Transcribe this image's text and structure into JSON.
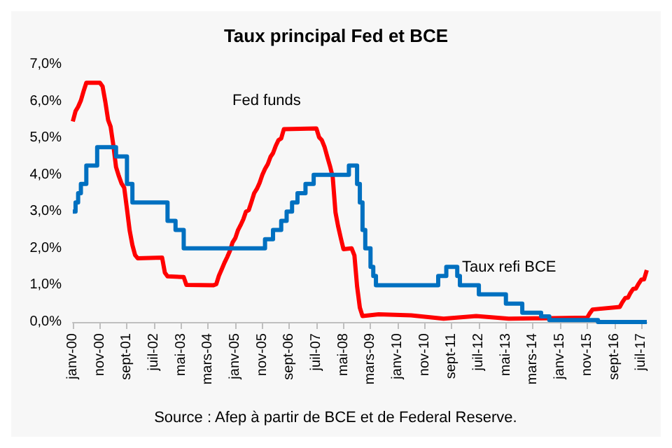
{
  "chart_data": {
    "type": "line",
    "title": "Taux principal Fed et BCE",
    "xlim": [
      "2000-01",
      "2017-09"
    ],
    "xticks": [
      {
        "value": "2000-01",
        "label": "janv-00"
      },
      {
        "value": "2000-11",
        "label": "nov-00"
      },
      {
        "value": "2001-09",
        "label": "sept-01"
      },
      {
        "value": "2002-07",
        "label": "juil-02"
      },
      {
        "value": "2003-05",
        "label": "mai-03"
      },
      {
        "value": "2004-03",
        "label": "mars-04"
      },
      {
        "value": "2005-01",
        "label": "janv-05"
      },
      {
        "value": "2005-11",
        "label": "nov-05"
      },
      {
        "value": "2006-09",
        "label": "sept-06"
      },
      {
        "value": "2007-07",
        "label": "juil-07"
      },
      {
        "value": "2008-05",
        "label": "mai-08"
      },
      {
        "value": "2009-03",
        "label": "mars-09"
      },
      {
        "value": "2010-01",
        "label": "janv-10"
      },
      {
        "value": "2010-11",
        "label": "nov-10"
      },
      {
        "value": "2011-09",
        "label": "sept-11"
      },
      {
        "value": "2012-07",
        "label": "juil-12"
      },
      {
        "value": "2013-05",
        "label": "mai-13"
      },
      {
        "value": "2014-03",
        "label": "mars-14"
      },
      {
        "value": "2015-01",
        "label": "janv-15"
      },
      {
        "value": "2015-11",
        "label": "nov-15"
      },
      {
        "value": "2016-09",
        "label": "sept-16"
      },
      {
        "value": "2017-07",
        "label": "juil-17"
      }
    ],
    "ylim": [
      0,
      7
    ],
    "yticks": [
      {
        "value": 0,
        "label": "0,0%"
      },
      {
        "value": 1,
        "label": "1,0%"
      },
      {
        "value": 2,
        "label": "2,0%"
      },
      {
        "value": 3,
        "label": "3,0%"
      },
      {
        "value": 4,
        "label": "4,0%"
      },
      {
        "value": 5,
        "label": "5,0%"
      },
      {
        "value": 6,
        "label": "6,0%"
      },
      {
        "value": 7,
        "label": "7,0%"
      }
    ],
    "grid": false,
    "marker": "none",
    "series": [
      {
        "name": "Fed funds",
        "color": "#ff0000",
        "x": [
          "2000-01",
          "2000-02",
          "2000-03",
          "2000-04",
          "2000-05",
          "2000-06",
          "2000-11",
          "2000-12",
          "2001-01",
          "2001-02",
          "2001-03",
          "2001-04",
          "2001-05",
          "2001-06",
          "2001-07",
          "2001-08",
          "2001-09",
          "2001-10",
          "2001-11",
          "2001-12",
          "2002-01",
          "2002-10",
          "2002-11",
          "2002-12",
          "2003-06",
          "2003-07",
          "2004-05",
          "2004-06",
          "2004-07",
          "2004-08",
          "2004-09",
          "2004-10",
          "2004-11",
          "2004-12",
          "2005-01",
          "2005-02",
          "2005-03",
          "2005-04",
          "2005-05",
          "2005-06",
          "2005-07",
          "2005-08",
          "2005-09",
          "2005-10",
          "2005-11",
          "2005-12",
          "2006-01",
          "2006-02",
          "2006-03",
          "2006-04",
          "2006-05",
          "2006-06",
          "2006-07",
          "2007-07",
          "2007-08",
          "2007-09",
          "2007-10",
          "2007-11",
          "2007-12",
          "2008-01",
          "2008-02",
          "2008-03",
          "2008-04",
          "2008-05",
          "2008-08",
          "2008-09",
          "2008-10",
          "2008-11",
          "2008-12",
          "2009-06",
          "2010-06",
          "2011-06",
          "2012-06",
          "2013-06",
          "2014-06",
          "2015-11",
          "2015-12",
          "2016-01",
          "2016-11",
          "2016-12",
          "2017-01",
          "2017-02",
          "2017-03",
          "2017-04",
          "2017-05",
          "2017-06",
          "2017-07",
          "2017-08",
          "2017-09"
        ],
        "values": [
          5.45,
          5.73,
          5.85,
          6.02,
          6.27,
          6.5,
          6.5,
          6.4,
          5.98,
          5.49,
          5.31,
          4.8,
          4.21,
          3.97,
          3.77,
          3.65,
          3.07,
          2.49,
          2.09,
          1.82,
          1.73,
          1.75,
          1.34,
          1.24,
          1.22,
          1.01,
          1.0,
          1.03,
          1.26,
          1.43,
          1.61,
          1.76,
          1.93,
          2.16,
          2.28,
          2.5,
          2.63,
          2.79,
          3.0,
          3.04,
          3.26,
          3.5,
          3.62,
          3.78,
          4.0,
          4.16,
          4.29,
          4.49,
          4.59,
          4.79,
          4.94,
          4.99,
          5.24,
          5.26,
          5.02,
          4.94,
          4.76,
          4.49,
          4.24,
          3.94,
          2.98,
          2.61,
          2.28,
          1.98,
          2.0,
          1.81,
          0.97,
          0.39,
          0.16,
          0.21,
          0.18,
          0.09,
          0.16,
          0.09,
          0.1,
          0.12,
          0.24,
          0.34,
          0.41,
          0.54,
          0.65,
          0.66,
          0.79,
          0.9,
          0.91,
          1.04,
          1.15,
          1.16,
          1.41
        ]
      },
      {
        "name": "Taux refi BCE",
        "type": "step",
        "color": "#0070c0",
        "x": [
          "2000-01",
          "2000-02",
          "2000-03",
          "2000-04",
          "2000-06",
          "2000-10",
          "2001-05",
          "2001-09",
          "2001-11",
          "2002-12",
          "2003-03",
          "2003-06",
          "2005-12",
          "2006-03",
          "2006-06",
          "2006-08",
          "2006-10",
          "2006-12",
          "2007-03",
          "2007-06",
          "2008-07",
          "2008-10",
          "2008-11",
          "2008-12",
          "2009-01",
          "2009-03",
          "2009-04",
          "2009-05",
          "2011-04",
          "2011-07",
          "2011-11",
          "2011-12",
          "2012-07",
          "2013-05",
          "2013-11",
          "2014-06",
          "2014-09",
          "2016-03",
          "2017-09"
        ],
        "values": [
          3.0,
          3.25,
          3.5,
          3.75,
          4.25,
          4.75,
          4.5,
          3.75,
          3.25,
          2.75,
          2.5,
          2.0,
          2.25,
          2.5,
          2.75,
          3.0,
          3.25,
          3.5,
          3.75,
          4.0,
          4.25,
          3.75,
          3.25,
          2.5,
          2.0,
          1.5,
          1.25,
          1.0,
          1.25,
          1.5,
          1.25,
          1.0,
          0.75,
          0.5,
          0.25,
          0.15,
          0.05,
          0.0,
          0.0
        ]
      }
    ],
    "annotations": [
      "Source : Afep à partir de BCE et de Federal Reserve."
    ]
  }
}
